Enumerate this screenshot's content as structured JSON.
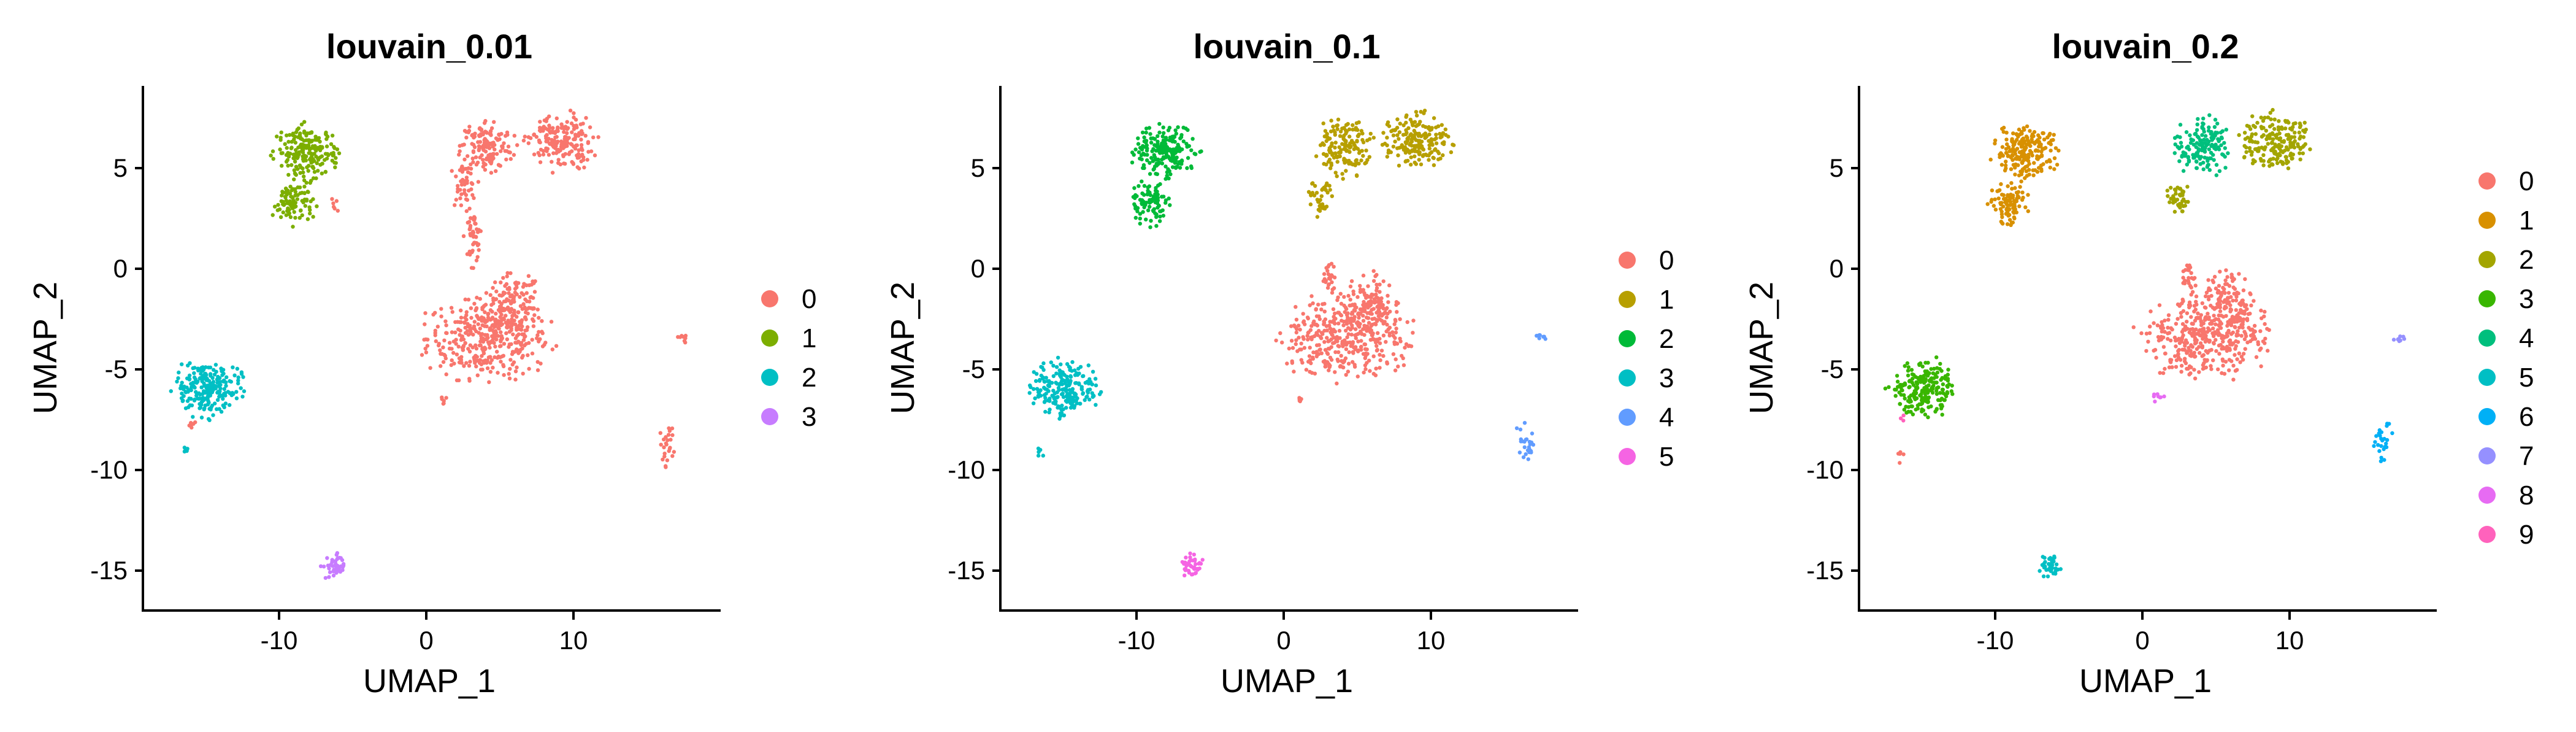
{
  "chart_data": [
    {
      "type": "scatter",
      "title": "louvain_0.01",
      "xlabel": "UMAP_1",
      "ylabel": "UMAP_2",
      "xlim": [
        -18.5,
        20
      ],
      "ylim": [
        -17,
        9
      ],
      "xticks": [
        -10,
        0,
        10
      ],
      "xtick_labels": [
        "-10",
        "0",
        "10"
      ],
      "yticks": [
        5,
        0,
        -5,
        -10,
        -15
      ],
      "ytick_labels": [
        "5",
        "0",
        "-5",
        "-10",
        "-15"
      ],
      "grid": false,
      "legend_position": "right",
      "legend_labels": [
        "0",
        "1",
        "2",
        "3"
      ],
      "colors": [
        "#F8766D",
        "#7CAE00",
        "#00BFC4",
        "#C77CFF"
      ],
      "clusters": [
        {
          "label": "0",
          "color": "#F8766D",
          "regions": [
            {
              "cx": 4.5,
              "cy": -3.5,
              "rx": 4.5,
              "ry": 2.2,
              "n": 380
            },
            {
              "cx": 6.2,
              "cy": -1.8,
              "rx": 2.0,
              "ry": 1.6,
              "n": 120
            },
            {
              "cx": 3.5,
              "cy": 1.5,
              "rx": 0.6,
              "ry": 1.4,
              "n": 50
            },
            {
              "cx": 2.8,
              "cy": 4.0,
              "rx": 1.0,
              "ry": 1.2,
              "n": 40
            },
            {
              "cx": 4.4,
              "cy": 6.0,
              "rx": 1.9,
              "ry": 1.5,
              "n": 150
            },
            {
              "cx": 9.3,
              "cy": 6.2,
              "rx": 2.4,
              "ry": 1.5,
              "n": 190
            },
            {
              "cx": 16.5,
              "cy": -8.8,
              "rx": 0.6,
              "ry": 1.1,
              "n": 25
            },
            {
              "cx": 17.5,
              "cy": -3.5,
              "rx": 0.4,
              "ry": 0.3,
              "n": 8
            },
            {
              "cx": 1.5,
              "cy": -6.5,
              "rx": 0.3,
              "ry": 0.3,
              "n": 6
            },
            {
              "cx": -5.8,
              "cy": 3.0,
              "rx": 0.3,
              "ry": 0.4,
              "n": 6
            },
            {
              "cx": -15.3,
              "cy": -7.8,
              "rx": 0.4,
              "ry": 0.4,
              "n": 6
            }
          ]
        },
        {
          "label": "1",
          "color": "#7CAE00",
          "regions": [
            {
              "cx": -7.5,
              "cy": 5.7,
              "rx": 2.3,
              "ry": 1.4,
              "n": 200
            },
            {
              "cx": -8.5,
              "cy": 3.2,
              "rx": 1.5,
              "ry": 1.1,
              "n": 90
            }
          ]
        },
        {
          "label": "2",
          "color": "#00BFC4",
          "regions": [
            {
              "cx": -14.2,
              "cy": -6.0,
              "rx": 2.4,
              "ry": 1.5,
              "n": 220
            },
            {
              "cx": -15.8,
              "cy": -9.2,
              "rx": 0.3,
              "ry": 0.4,
              "n": 5
            }
          ]
        },
        {
          "label": "3",
          "color": "#C77CFF",
          "regions": [
            {
              "cx": -5.8,
              "cy": -14.8,
              "rx": 0.8,
              "ry": 0.7,
              "n": 40
            }
          ]
        }
      ]
    },
    {
      "type": "scatter",
      "title": "louvain_0.1",
      "xlabel": "UMAP_1",
      "ylabel": "UMAP_2",
      "xlim": [
        -18.5,
        20
      ],
      "ylim": [
        -17,
        9
      ],
      "xticks": [
        -10,
        0,
        10
      ],
      "xtick_labels": [
        "-10",
        "0",
        "10"
      ],
      "yticks": [
        5,
        0,
        -5,
        -10,
        -15
      ],
      "ytick_labels": [
        "5",
        "0",
        "-5",
        "-10",
        "-15"
      ],
      "grid": false,
      "legend_position": "right",
      "legend_labels": [
        "0",
        "1",
        "2",
        "3",
        "4",
        "5"
      ],
      "colors": [
        "#F8766D",
        "#B79F00",
        "#00BA38",
        "#00BFC4",
        "#619CFF",
        "#F564E3"
      ],
      "clusters": [
        {
          "label": "0",
          "color": "#F8766D",
          "regions": [
            {
              "cx": 4.5,
              "cy": -3.5,
              "rx": 4.5,
              "ry": 2.2,
              "n": 380
            },
            {
              "cx": 6.2,
              "cy": -1.8,
              "rx": 2.0,
              "ry": 1.6,
              "n": 120
            },
            {
              "cx": 3.5,
              "cy": -0.5,
              "rx": 0.5,
              "ry": 0.8,
              "n": 25
            },
            {
              "cx": 1.5,
              "cy": -6.5,
              "rx": 0.3,
              "ry": 0.3,
              "n": 6
            }
          ]
        },
        {
          "label": "1",
          "color": "#B79F00",
          "regions": [
            {
              "cx": 4.4,
              "cy": 6.0,
              "rx": 1.9,
              "ry": 1.5,
              "n": 150
            },
            {
              "cx": 9.3,
              "cy": 6.2,
              "rx": 2.4,
              "ry": 1.5,
              "n": 190
            },
            {
              "cx": 2.8,
              "cy": 3.5,
              "rx": 0.9,
              "ry": 1.0,
              "n": 40
            }
          ]
        },
        {
          "label": "2",
          "color": "#00BA38",
          "regions": [
            {
              "cx": -7.5,
              "cy": 5.7,
              "rx": 2.3,
              "ry": 1.4,
              "n": 200
            },
            {
              "cx": -8.5,
              "cy": 3.2,
              "rx": 1.5,
              "ry": 1.1,
              "n": 90
            }
          ]
        },
        {
          "label": "3",
          "color": "#00BFC4",
          "regions": [
            {
              "cx": -14.2,
              "cy": -6.0,
              "rx": 2.4,
              "ry": 1.5,
              "n": 220
            },
            {
              "cx": -15.8,
              "cy": -9.2,
              "rx": 0.3,
              "ry": 0.4,
              "n": 5
            }
          ]
        },
        {
          "label": "4",
          "color": "#619CFF",
          "regions": [
            {
              "cx": 16.5,
              "cy": -8.6,
              "rx": 0.7,
              "ry": 1.1,
              "n": 25
            },
            {
              "cx": 17.5,
              "cy": -3.5,
              "rx": 0.4,
              "ry": 0.3,
              "n": 8
            }
          ]
        },
        {
          "label": "5",
          "color": "#F564E3",
          "regions": [
            {
              "cx": -5.8,
              "cy": -14.8,
              "rx": 0.8,
              "ry": 0.7,
              "n": 40
            }
          ]
        }
      ]
    },
    {
      "type": "scatter",
      "title": "louvain_0.2",
      "xlabel": "UMAP_1",
      "ylabel": "UMAP_2",
      "xlim": [
        -18.5,
        20
      ],
      "ylim": [
        -17,
        9
      ],
      "xticks": [
        -10,
        0,
        10
      ],
      "xtick_labels": [
        "-10",
        "0",
        "10"
      ],
      "yticks": [
        5,
        0,
        -5,
        -10,
        -15
      ],
      "ytick_labels": [
        "5",
        "0",
        "-5",
        "-10",
        "-15"
      ],
      "grid": false,
      "legend_position": "right",
      "legend_labels": [
        "0",
        "1",
        "2",
        "3",
        "4",
        "5",
        "6",
        "7",
        "8",
        "9"
      ],
      "colors": [
        "#F8766D",
        "#D89000",
        "#A3A500",
        "#39B600",
        "#00BF7D",
        "#00BFC4",
        "#00B0F6",
        "#9590FF",
        "#E76BF3",
        "#FF62BC"
      ],
      "clusters": [
        {
          "label": "0",
          "color": "#F8766D",
          "regions": [
            {
              "cx": 4.5,
              "cy": -3.5,
              "rx": 4.5,
              "ry": 2.2,
              "n": 380
            },
            {
              "cx": 6.2,
              "cy": -1.8,
              "rx": 2.0,
              "ry": 1.6,
              "n": 120
            },
            {
              "cx": 3.5,
              "cy": -0.5,
              "rx": 0.5,
              "ry": 0.8,
              "n": 25
            },
            {
              "cx": -15.8,
              "cy": -9.3,
              "rx": 0.3,
              "ry": 0.4,
              "n": 5
            }
          ]
        },
        {
          "label": "1",
          "color": "#D89000",
          "regions": [
            {
              "cx": -7.5,
              "cy": 5.7,
              "rx": 2.3,
              "ry": 1.4,
              "n": 200
            },
            {
              "cx": -8.5,
              "cy": 3.2,
              "rx": 1.5,
              "ry": 1.1,
              "n": 90
            }
          ]
        },
        {
          "label": "2",
          "color": "#A3A500",
          "regions": [
            {
              "cx": 9.3,
              "cy": 6.2,
              "rx": 2.4,
              "ry": 1.5,
              "n": 190
            },
            {
              "cx": 2.8,
              "cy": 3.5,
              "rx": 0.9,
              "ry": 1.0,
              "n": 40
            }
          ]
        },
        {
          "label": "3",
          "color": "#39B600",
          "regions": [
            {
              "cx": -14.2,
              "cy": -6.0,
              "rx": 2.4,
              "ry": 1.5,
              "n": 220
            }
          ]
        },
        {
          "label": "4",
          "color": "#00BF7D",
          "regions": [
            {
              "cx": 4.4,
              "cy": 6.0,
              "rx": 1.9,
              "ry": 1.5,
              "n": 150
            }
          ]
        },
        {
          "label": "5",
          "color": "#00BFC4",
          "regions": [
            {
              "cx": -5.8,
              "cy": -14.8,
              "rx": 0.8,
              "ry": 0.7,
              "n": 40
            }
          ]
        },
        {
          "label": "6",
          "color": "#00B0F6",
          "regions": [
            {
              "cx": 16.5,
              "cy": -8.6,
              "rx": 0.7,
              "ry": 1.1,
              "n": 25
            }
          ]
        },
        {
          "label": "7",
          "color": "#9590FF",
          "regions": [
            {
              "cx": 17.5,
              "cy": -3.5,
              "rx": 0.4,
              "ry": 0.3,
              "n": 8
            }
          ]
        },
        {
          "label": "8",
          "color": "#E76BF3",
          "regions": [
            {
              "cx": 1.5,
              "cy": -6.5,
              "rx": 0.4,
              "ry": 0.4,
              "n": 8
            }
          ]
        },
        {
          "label": "9",
          "color": "#FF62BC",
          "regions": [
            {
              "cx": -15.5,
              "cy": -7.5,
              "rx": 0.2,
              "ry": 0.2,
              "n": 3
            }
          ]
        }
      ]
    }
  ]
}
